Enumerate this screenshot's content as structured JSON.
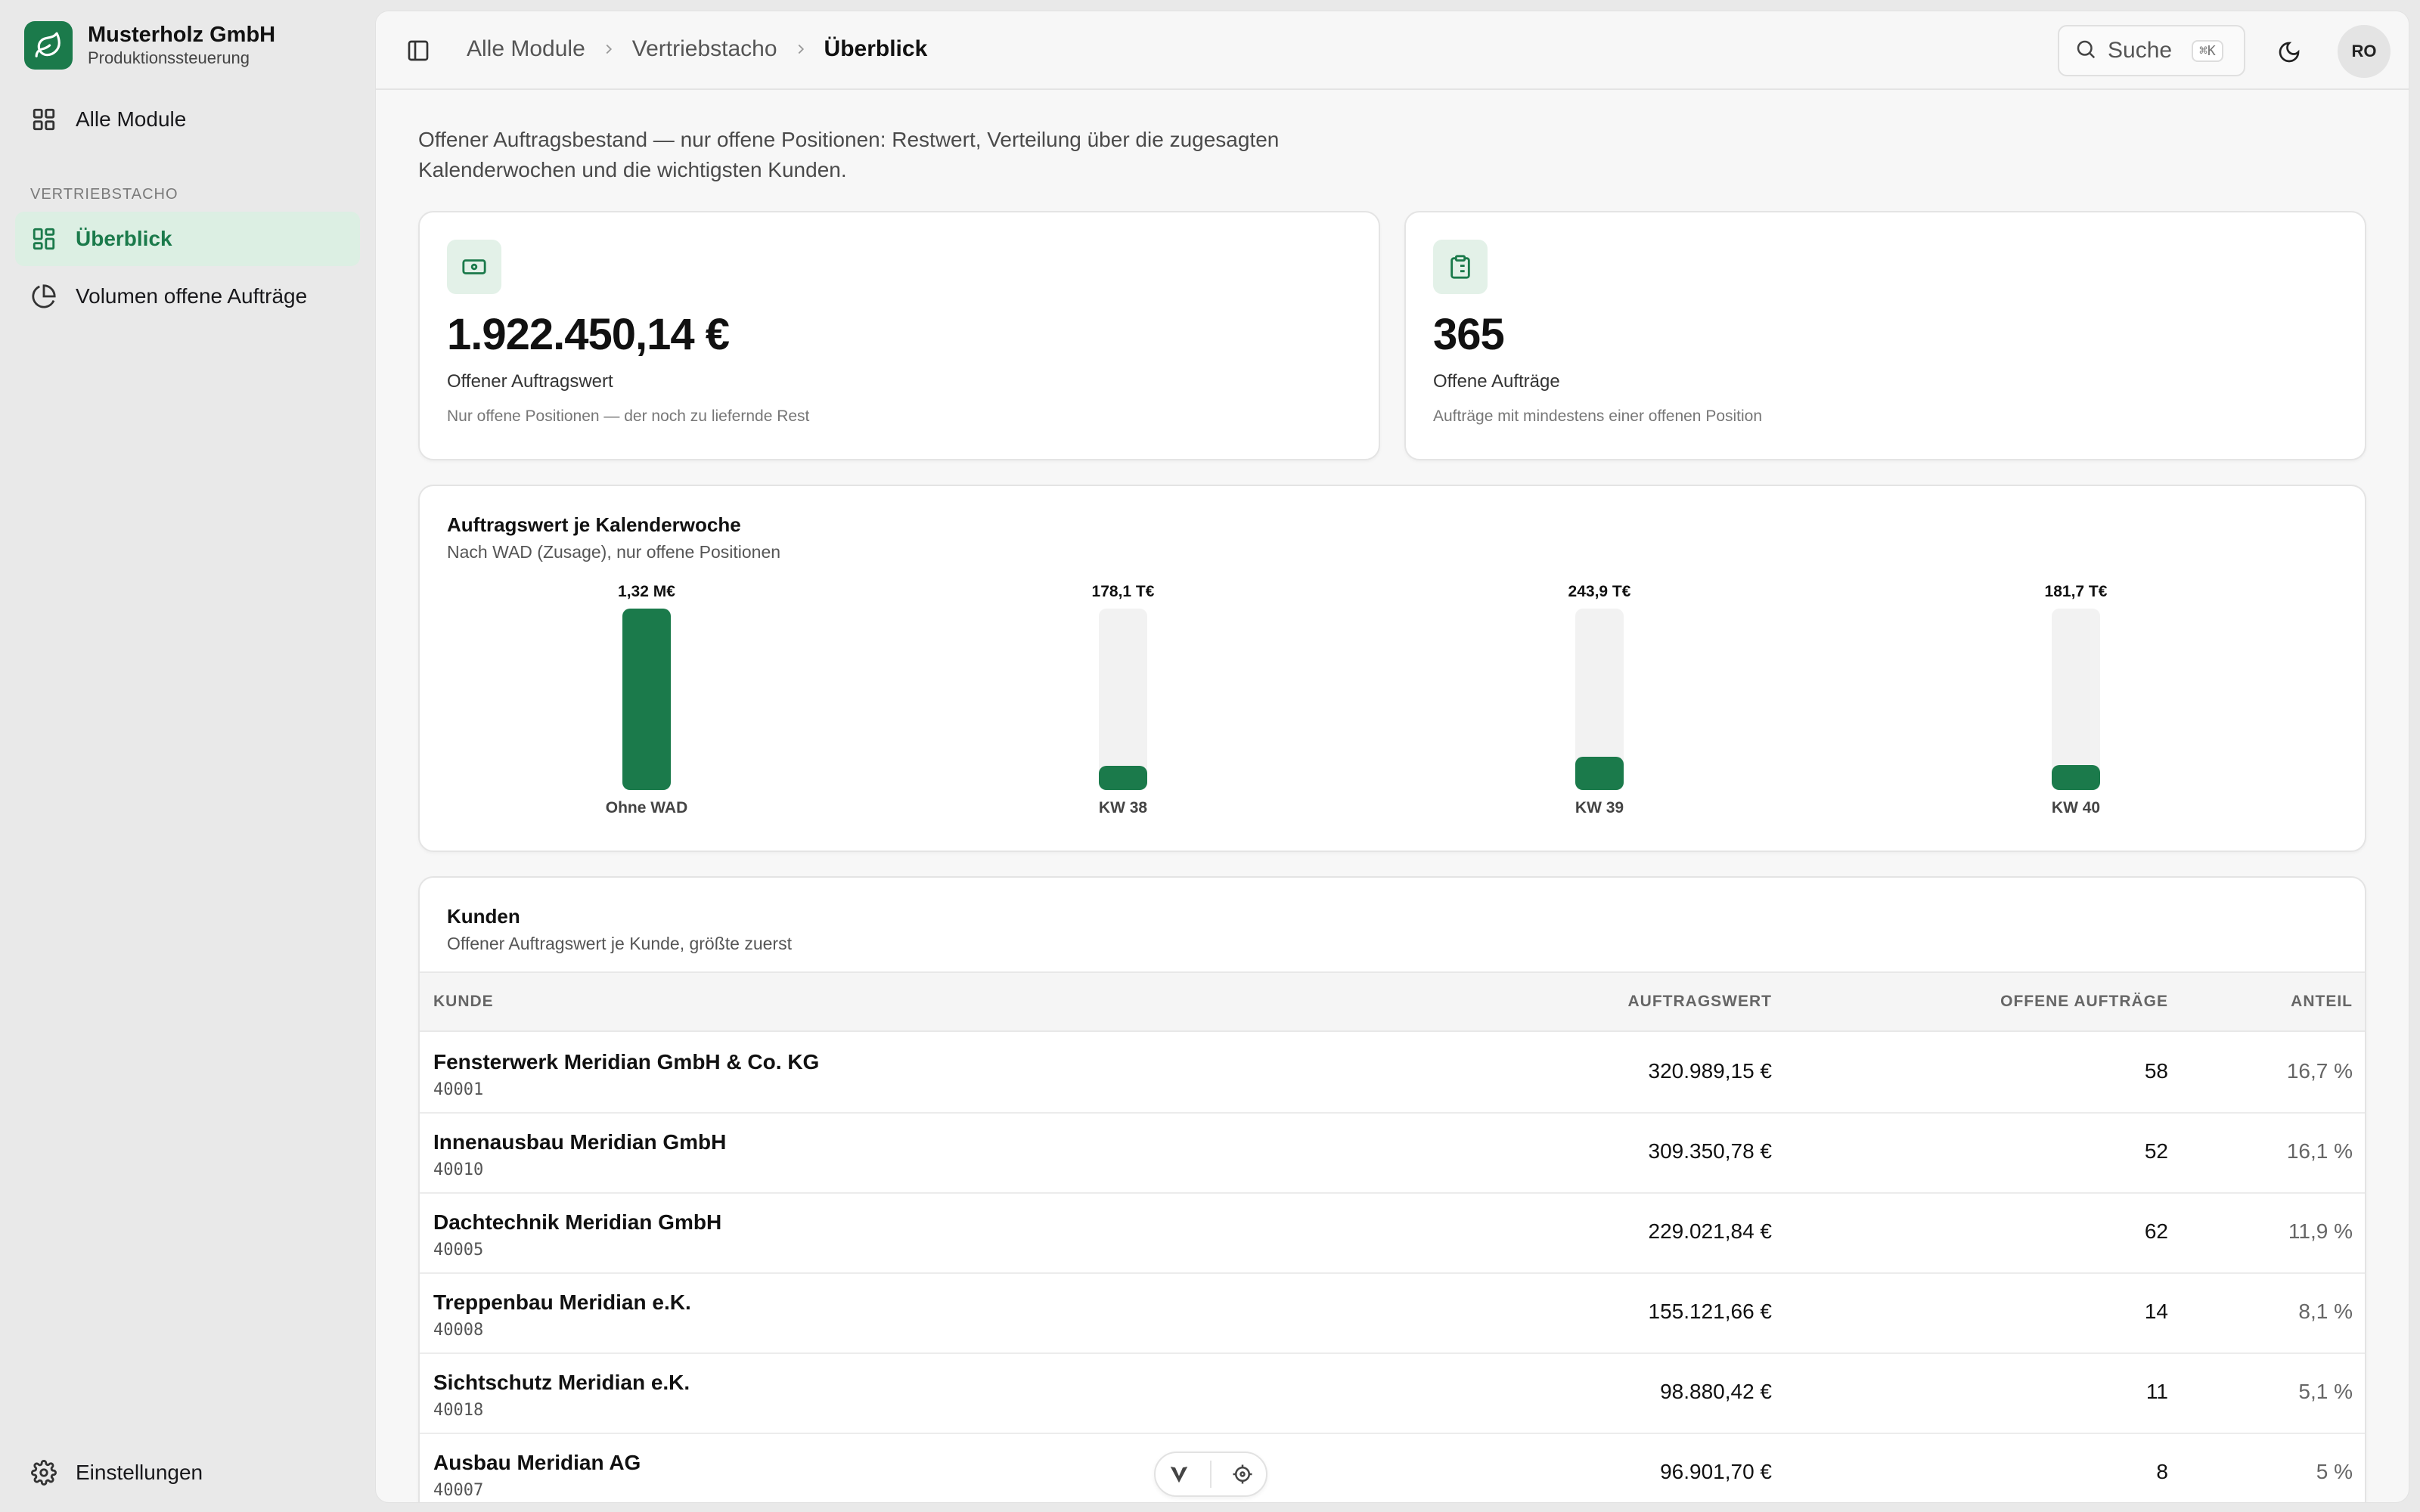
{
  "brand": {
    "name": "Musterholz GmbH",
    "subtitle": "Produktionssteuerung",
    "icon": "leaf-icon",
    "color": "#1b7a4b"
  },
  "sidebar": {
    "top_item": {
      "label": "Alle Module",
      "icon": "grid-icon"
    },
    "section_label": "VERTRIEBSTACHO",
    "items": [
      {
        "label": "Überblick",
        "icon": "dashboard-icon",
        "active": true
      },
      {
        "label": "Volumen offene Aufträge",
        "icon": "pie-chart-icon",
        "active": false
      }
    ],
    "settings": {
      "label": "Einstellungen",
      "icon": "gear-icon"
    }
  },
  "topbar": {
    "breadcrumb": [
      "Alle Module",
      "Vertriebstacho",
      "Überblick"
    ],
    "search": {
      "label": "Suche",
      "shortcut": "⌘K"
    },
    "avatar_initials": "RO"
  },
  "intro_text": "Offener Auftragsbestand — nur offene Positionen: Restwert, Verteilung über die zugesagten Kalenderwochen und die wichtigsten Kunden.",
  "kpis": [
    {
      "value": "1.922.450,14 €",
      "label": "Offener Auftragswert",
      "note": "Nur offene Positionen — der noch zu liefernde Rest",
      "icon": "banknote-icon"
    },
    {
      "value": "365",
      "label": "Offene Aufträge",
      "note": "Aufträge mit mindestens einer offenen Position",
      "icon": "clipboard-list-icon"
    }
  ],
  "chart_card": {
    "title": "Auftragswert je Kalenderwoche",
    "subtitle": "Nach WAD (Zusage), nur offene Positionen"
  },
  "chart_data": {
    "type": "bar",
    "categories": [
      "Ohne WAD",
      "KW 38",
      "KW 39",
      "KW 40"
    ],
    "values": [
      1320000,
      178100,
      243900,
      181700
    ],
    "value_labels": [
      "1,32 M€",
      "178,1 T€",
      "243,9 T€",
      "181,7 T€"
    ],
    "title": "Auftragswert je Kalenderwoche",
    "subtitle": "Nach WAD (Zusage), nur offene Positionen",
    "ylim": [
      0,
      1320000
    ],
    "color": "#1b7a4b"
  },
  "customers": {
    "title": "Kunden",
    "subtitle": "Offener Auftragswert je Kunde, größte zuerst",
    "columns": [
      "KUNDE",
      "AUFTRAGSWERT",
      "OFFENE AUFTRÄGE",
      "ANTEIL"
    ],
    "rows": [
      {
        "name": "Fensterwerk Meridian GmbH & Co. KG",
        "id": "40001",
        "value": "320.989,15 €",
        "orders": "58",
        "share": "16,7 %"
      },
      {
        "name": "Innenausbau Meridian GmbH",
        "id": "40010",
        "value": "309.350,78 €",
        "orders": "52",
        "share": "16,1 %"
      },
      {
        "name": "Dachtechnik Meridian GmbH",
        "id": "40005",
        "value": "229.021,84 €",
        "orders": "62",
        "share": "11,9 %"
      },
      {
        "name": "Treppenbau Meridian e.K.",
        "id": "40008",
        "value": "155.121,66 €",
        "orders": "14",
        "share": "8,1 %"
      },
      {
        "name": "Sichtschutz Meridian e.K.",
        "id": "40018",
        "value": "98.880,42 €",
        "orders": "11",
        "share": "5,1 %"
      },
      {
        "name": "Ausbau Meridian AG",
        "id": "40007",
        "value": "96.901,70 €",
        "orders": "8",
        "share": "5 %"
      }
    ]
  },
  "devbar": {
    "icons": [
      "vite-icon",
      "crosshair-icon"
    ]
  }
}
